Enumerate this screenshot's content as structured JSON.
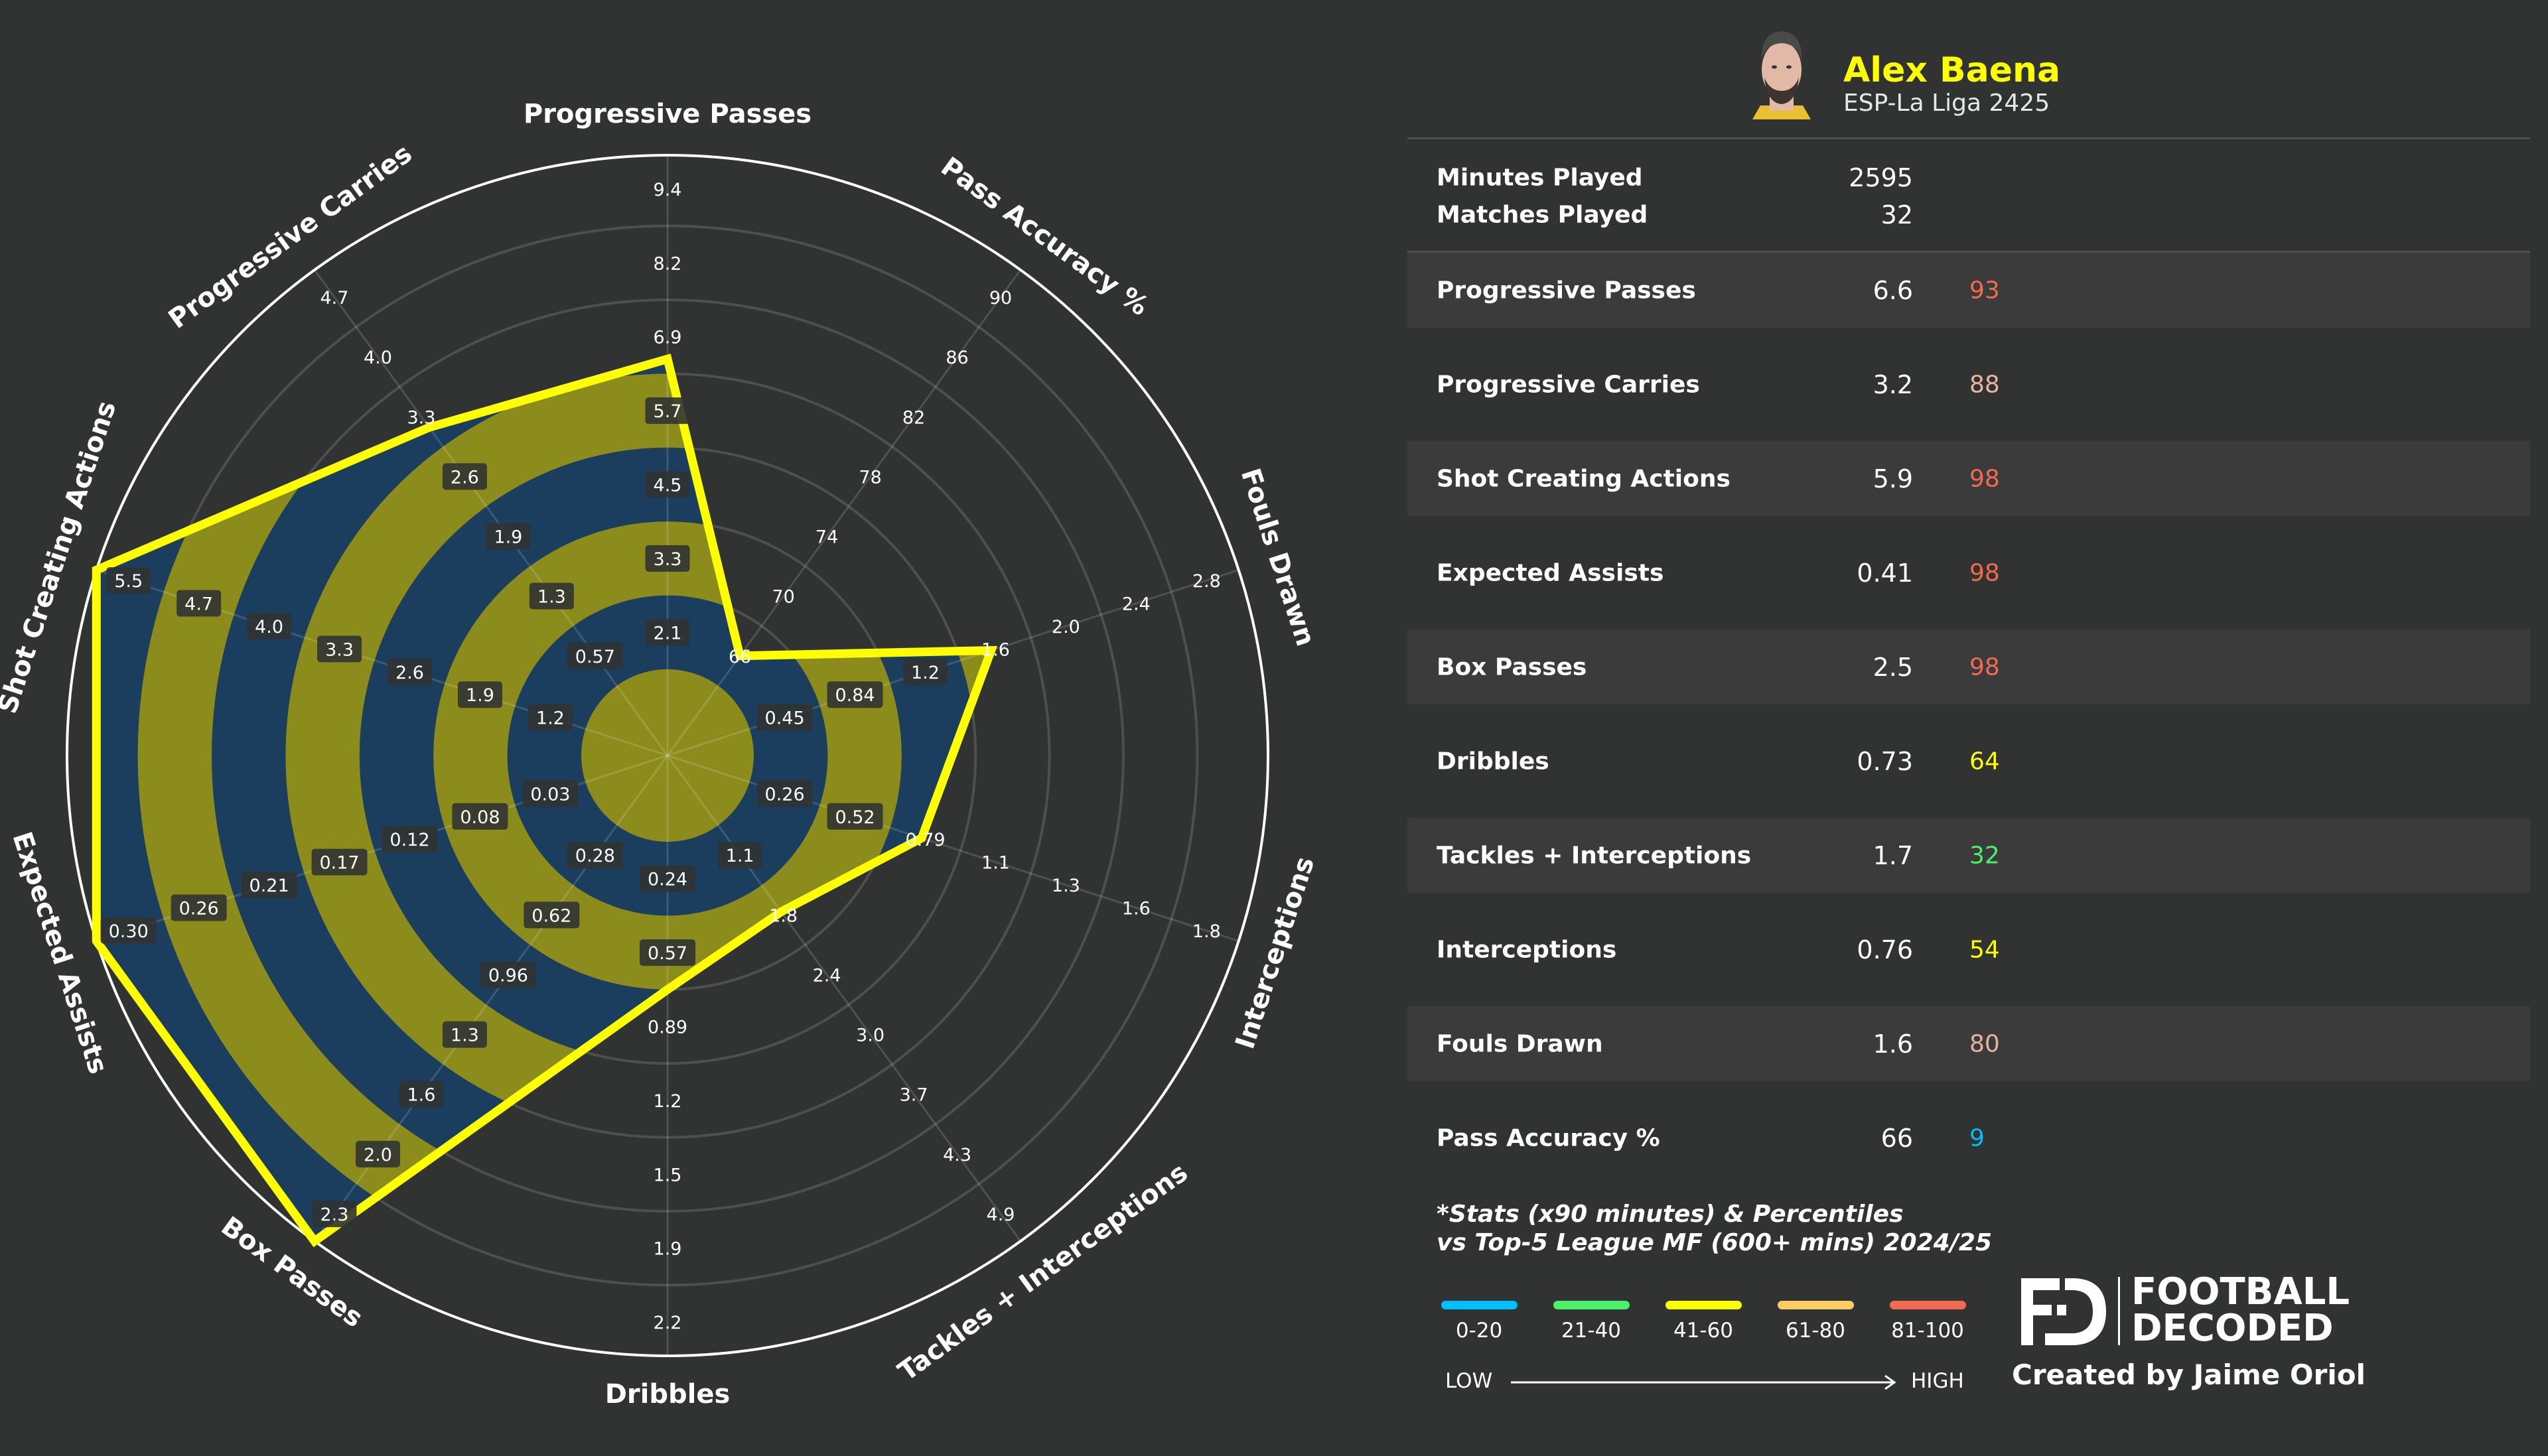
{
  "player": {
    "name": "Alex Baena",
    "competition": "ESP-La Liga 2425",
    "name_color": "#ffff00"
  },
  "summary": [
    {
      "label": "Minutes Played",
      "value": "2595"
    },
    {
      "label": "Matches Played",
      "value": "32"
    }
  ],
  "stats": [
    {
      "label": "Progressive Passes",
      "value": "6.6",
      "percentile": "93",
      "color": "#f26b50"
    },
    {
      "label": "Progressive Carries",
      "value": "3.2",
      "percentile": "88",
      "color": "#e6b5a0"
    },
    {
      "label": "Shot Creating Actions",
      "value": "5.9",
      "percentile": "98",
      "color": "#f26b50"
    },
    {
      "label": "Expected Assists",
      "value": "0.41",
      "percentile": "98",
      "color": "#f26b50"
    },
    {
      "label": "Box Passes",
      "value": "2.5",
      "percentile": "98",
      "color": "#f26b50"
    },
    {
      "label": "Dribbles",
      "value": "0.73",
      "percentile": "64",
      "color": "#ffff00"
    },
    {
      "label": "Tackles + Interceptions",
      "value": "1.7",
      "percentile": "32",
      "color": "#4cf06a"
    },
    {
      "label": "Interceptions",
      "value": "0.76",
      "percentile": "54",
      "color": "#ffff00"
    },
    {
      "label": "Fouls Drawn",
      "value": "1.6",
      "percentile": "80",
      "color": "#e0b4a0"
    },
    {
      "label": "Pass Accuracy %",
      "value": "66",
      "percentile": "9",
      "color": "#00bfff"
    }
  ],
  "footnote": {
    "line1": "*Stats (x90 minutes) & Percentiles",
    "line2": "vs Top-5 League MF (600+ mins) 2024/25"
  },
  "legend": {
    "bins": [
      {
        "label": "0-20",
        "color": "#00bfff"
      },
      {
        "label": "21-40",
        "color": "#4cf06a"
      },
      {
        "label": "41-60",
        "color": "#ffff00"
      },
      {
        "label": "61-80",
        "color": "#ffcc66"
      },
      {
        "label": "81-100",
        "color": "#f26b50"
      }
    ],
    "low": "LOW",
    "high": "HIGH"
  },
  "branding": {
    "logo_line1": "FOOTBALL",
    "logo_line2": "DECODED",
    "credit": "Created by Jaime Oriol"
  },
  "chart_data": {
    "type": "radar",
    "colors": {
      "band_a": "#1b3d5e",
      "band_b": "#8c8c1c",
      "outline": "#ffff00",
      "grid": "#4e4f4e",
      "outer_ring": "#ffffff"
    },
    "params": [
      {
        "name": "Progressive Passes",
        "value": 6.6,
        "ticks": [
          "2.1",
          "3.3",
          "4.5",
          "5.7",
          "6.9",
          "8.2",
          "9.4"
        ]
      },
      {
        "name": "Progressive Carries",
        "value": 3.2,
        "ticks": [
          "0.57",
          "1.3",
          "1.9",
          "2.6",
          "3.3",
          "4.0",
          "4.7"
        ]
      },
      {
        "name": "Shot Creating Actions",
        "value": 5.9,
        "ticks": [
          "1.2",
          "1.9",
          "2.6",
          "3.3",
          "4.0",
          "4.7",
          "5.5"
        ]
      },
      {
        "name": "Expected Assists",
        "value": 0.41,
        "ticks": [
          "0.03",
          "0.08",
          "0.12",
          "0.17",
          "0.21",
          "0.26",
          "0.30"
        ]
      },
      {
        "name": "Box Passes",
        "value": 2.5,
        "ticks": [
          "0.28",
          "0.62",
          "0.96",
          "1.3",
          "1.6",
          "2.0",
          "2.3"
        ]
      },
      {
        "name": "Dribbles",
        "value": 0.73,
        "ticks": [
          "0.24",
          "0.57",
          "0.89",
          "1.2",
          "1.5",
          "1.9",
          "2.2"
        ]
      },
      {
        "name": "Tackles + Interceptions",
        "value": 1.7,
        "ticks": [
          "1.1",
          "1.8",
          "2.4",
          "3.0",
          "3.7",
          "4.3",
          "4.9"
        ]
      },
      {
        "name": "Interceptions",
        "value": 0.76,
        "ticks": [
          "0.26",
          "0.52",
          "0.79",
          "1.1",
          "1.3",
          "1.6",
          "1.8"
        ]
      },
      {
        "name": "Fouls Drawn",
        "value": 1.6,
        "ticks": [
          "0.45",
          "0.84",
          "1.2",
          "1.6",
          "2.0",
          "2.4",
          "2.8"
        ]
      },
      {
        "name": "Pass Accuracy %",
        "value": 66,
        "ticks": [
          "66",
          "70",
          "74",
          "78",
          "82",
          "86",
          "90"
        ]
      }
    ]
  }
}
